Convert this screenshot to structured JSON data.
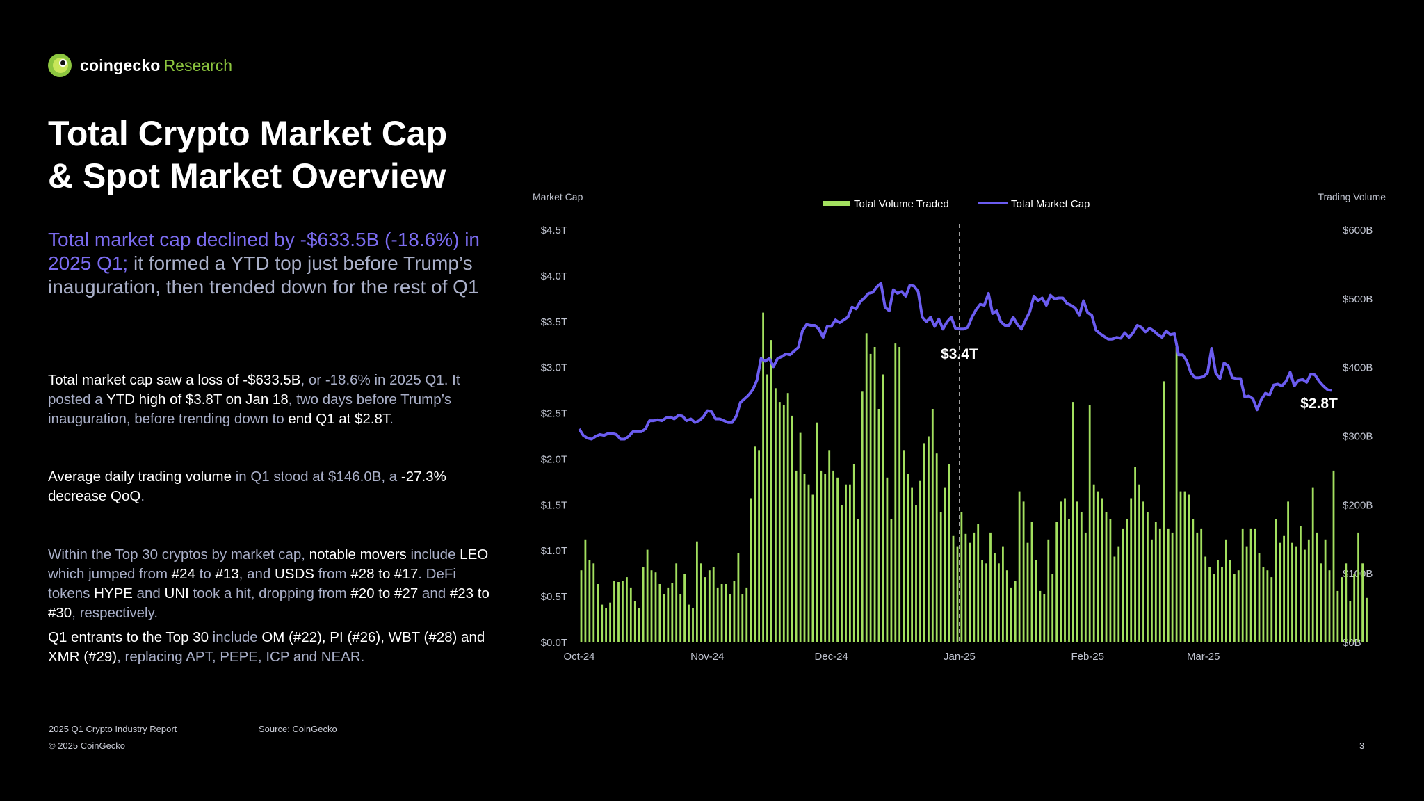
{
  "brand": {
    "name": "coingecko",
    "suffix": "Research"
  },
  "title_line1": "Total Crypto Market Cap",
  "title_line2": "& Spot Market Overview",
  "lead": {
    "highlight": "Total market cap declined by -$633.5B (-18.6%) in 2025 Q1;",
    "rest": " it formed a YTD top just before Trump’s inauguration, then trended down for the rest of Q1"
  },
  "p1": [
    {
      "t": "Total market cap saw a loss of -$633.5B",
      "w": true
    },
    {
      "t": ", or -18.6% in 2025 Q1. It posted a ",
      "w": false
    },
    {
      "t": "YTD high of $3.8T on Jan 18",
      "w": true
    },
    {
      "t": ", two days before Trump’s inauguration, before trending down to ",
      "w": false
    },
    {
      "t": "end Q1 at $2.8T",
      "w": true
    },
    {
      "t": ".",
      "w": false
    }
  ],
  "p2": [
    {
      "t": "Average daily trading volume",
      "w": true
    },
    {
      "t": " in Q1 stood at $146.0B, a ",
      "w": false
    },
    {
      "t": "-27.3% decrease QoQ",
      "w": true
    },
    {
      "t": ".",
      "w": false
    }
  ],
  "p3": [
    {
      "t": "Within the Top 30 cryptos by market cap, ",
      "w": false
    },
    {
      "t": "notable movers",
      "w": true
    },
    {
      "t": " include ",
      "w": false
    },
    {
      "t": "LEO",
      "w": true
    },
    {
      "t": " which jumped from ",
      "w": false
    },
    {
      "t": "#24",
      "w": true
    },
    {
      "t": " to ",
      "w": false
    },
    {
      "t": "#13",
      "w": true
    },
    {
      "t": ", and ",
      "w": false
    },
    {
      "t": "USDS",
      "w": true
    },
    {
      "t": " from ",
      "w": false
    },
    {
      "t": "#28 to #17",
      "w": true
    },
    {
      "t": ". DeFi tokens ",
      "w": false
    },
    {
      "t": "HYPE",
      "w": true
    },
    {
      "t": " and ",
      "w": false
    },
    {
      "t": "UNI",
      "w": true
    },
    {
      "t": " took a hit, dropping from ",
      "w": false
    },
    {
      "t": "#20 to #27",
      "w": true
    },
    {
      "t": " and ",
      "w": false
    },
    {
      "t": "#23 to #30",
      "w": true
    },
    {
      "t": ", respectively.",
      "w": false
    }
  ],
  "p4": [
    {
      "t": "Q1 entrants to the Top 30",
      "w": true
    },
    {
      "t": " include ",
      "w": false
    },
    {
      "t": "OM (#22), PI (#26), WBT (#28) and XMR (#29)",
      "w": true
    },
    {
      "t": ", replacing APT, PEPE, ICP and NEAR.",
      "w": false
    }
  ],
  "footer": {
    "report": "2025 Q1 Crypto Industry Report",
    "source": "Source: CoinGecko",
    "copyright": "© 2025 CoinGecko",
    "page": "3"
  },
  "colors": {
    "volume": "#a3e05f",
    "market_cap": "#6b5cf0",
    "highlight": "#7b6cf0",
    "muted": "#aab0c9"
  },
  "chart_data": {
    "type": "bar+line",
    "left_axis_title": "Market Cap",
    "right_axis_title": "Trading Volume",
    "legend": [
      "Total Volume Traded",
      "Total Market Cap"
    ],
    "left_ticks": [
      "$0.0T",
      "$0.5T",
      "$1.0T",
      "$1.5T",
      "$2.0T",
      "$2.5T",
      "$3.0T",
      "$3.5T",
      "$4.0T",
      "$4.5T"
    ],
    "right_ticks": [
      "$0B",
      "$100B",
      "$200B",
      "$300B",
      "$400B",
      "$500B",
      "$600B"
    ],
    "left_range_T": [
      0,
      4.5
    ],
    "right_range_B": [
      0,
      600
    ],
    "x_ticks": [
      {
        "label": "Oct-24",
        "day": 0
      },
      {
        "label": "Nov-24",
        "day": 31
      },
      {
        "label": "Dec-24",
        "day": 61
      },
      {
        "label": "Jan-25",
        "day": 92
      },
      {
        "label": "Feb-25",
        "day": 123
      },
      {
        "label": "Mar-25",
        "day": 151
      }
    ],
    "days": 182,
    "marker_day": 92,
    "annotations": [
      {
        "text": "$3.4T",
        "day": 92,
        "value_T": 3.4
      },
      {
        "text": "$2.8T",
        "day": 182,
        "value_T": 2.8
      }
    ],
    "market_cap_T": [
      2.33,
      2.26,
      2.23,
      2.22,
      2.25,
      2.27,
      2.26,
      2.28,
      2.28,
      2.27,
      2.22,
      2.22,
      2.25,
      2.3,
      2.3,
      2.3,
      2.33,
      2.42,
      2.42,
      2.43,
      2.42,
      2.45,
      2.46,
      2.44,
      2.48,
      2.47,
      2.42,
      2.44,
      2.4,
      2.42,
      2.46,
      2.53,
      2.52,
      2.44,
      2.44,
      2.42,
      2.4,
      2.4,
      2.47,
      2.62,
      2.66,
      2.7,
      2.76,
      2.86,
      3.1,
      3.07,
      3.1,
      3.01,
      3.1,
      3.12,
      3.15,
      3.14,
      3.18,
      3.22,
      3.4,
      3.47,
      3.46,
      3.46,
      3.42,
      3.33,
      3.45,
      3.45,
      3.52,
      3.49,
      3.52,
      3.55,
      3.66,
      3.64,
      3.72,
      3.76,
      3.81,
      3.82,
      3.88,
      3.92,
      3.66,
      3.62,
      3.85,
      3.81,
      3.83,
      3.78,
      3.9,
      3.89,
      3.83,
      3.55,
      3.5,
      3.55,
      3.45,
      3.53,
      3.42,
      3.5,
      3.55,
      3.43,
      3.42,
      3.42,
      3.44,
      3.55,
      3.63,
      3.69,
      3.68,
      3.81,
      3.59,
      3.62,
      3.5,
      3.46,
      3.46,
      3.55,
      3.47,
      3.42,
      3.52,
      3.61,
      3.78,
      3.73,
      3.76,
      3.68,
      3.79,
      3.75,
      3.76,
      3.76,
      3.7,
      3.68,
      3.65,
      3.57,
      3.73,
      3.6,
      3.57,
      3.41,
      3.37,
      3.34,
      3.31,
      3.31,
      3.33,
      3.32,
      3.38,
      3.33,
      3.38,
      3.46,
      3.44,
      3.39,
      3.43,
      3.4,
      3.36,
      3.33,
      3.4,
      3.36,
      3.37,
      3.14,
      3.14,
      3.07,
      2.94,
      2.89,
      2.89,
      2.9,
      2.94,
      3.21,
      2.94,
      2.88,
      3.05,
      3.02,
      2.89,
      2.88,
      2.88,
      2.68,
      2.69,
      2.66,
      2.54,
      2.65,
      2.72,
      2.7,
      2.81,
      2.82,
      2.8,
      2.85,
      2.95,
      2.8,
      2.86,
      2.87,
      2.84,
      2.93,
      2.92,
      2.85,
      2.8,
      2.76,
      2.75
    ],
    "volume_B": [
      105,
      150,
      120,
      115,
      85,
      55,
      50,
      58,
      90,
      88,
      89,
      95,
      80,
      60,
      50,
      110,
      135,
      105,
      102,
      85,
      70,
      80,
      87,
      115,
      70,
      100,
      55,
      50,
      147,
      115,
      95,
      105,
      110,
      80,
      85,
      85,
      70,
      90,
      130,
      70,
      80,
      210,
      285,
      280,
      480,
      390,
      440,
      370,
      350,
      345,
      363,
      330,
      250,
      305,
      245,
      230,
      215,
      320,
      250,
      245,
      280,
      250,
      240,
      200,
      230,
      230,
      260,
      180,
      365,
      450,
      420,
      430,
      340,
      390,
      240,
      180,
      435,
      430,
      280,
      245,
      225,
      200,
      235,
      290,
      300,
      340,
      275,
      190,
      225,
      260,
      155,
      140,
      190,
      158,
      145,
      160,
      173,
      120,
      115,
      160,
      130,
      115,
      140,
      105,
      80,
      90,
      220,
      205,
      145,
      175,
      120,
      75,
      70,
      150,
      100,
      175,
      205,
      210,
      180,
      350,
      205,
      190,
      160,
      345,
      230,
      220,
      210,
      190,
      180,
      125,
      140,
      165,
      180,
      210,
      255,
      230,
      205,
      190,
      150,
      175,
      165,
      380,
      165,
      160,
      430,
      220,
      220,
      215,
      180,
      160,
      165,
      125,
      110,
      100,
      120,
      110,
      150,
      120,
      100,
      105,
      165,
      140,
      165,
      165,
      130,
      110,
      105,
      95,
      180,
      145,
      155,
      205,
      145,
      140,
      170,
      135,
      150,
      225,
      160,
      115,
      150,
      105,
      250,
      75,
      95,
      115,
      60,
      100,
      160,
      115,
      65
    ]
  }
}
